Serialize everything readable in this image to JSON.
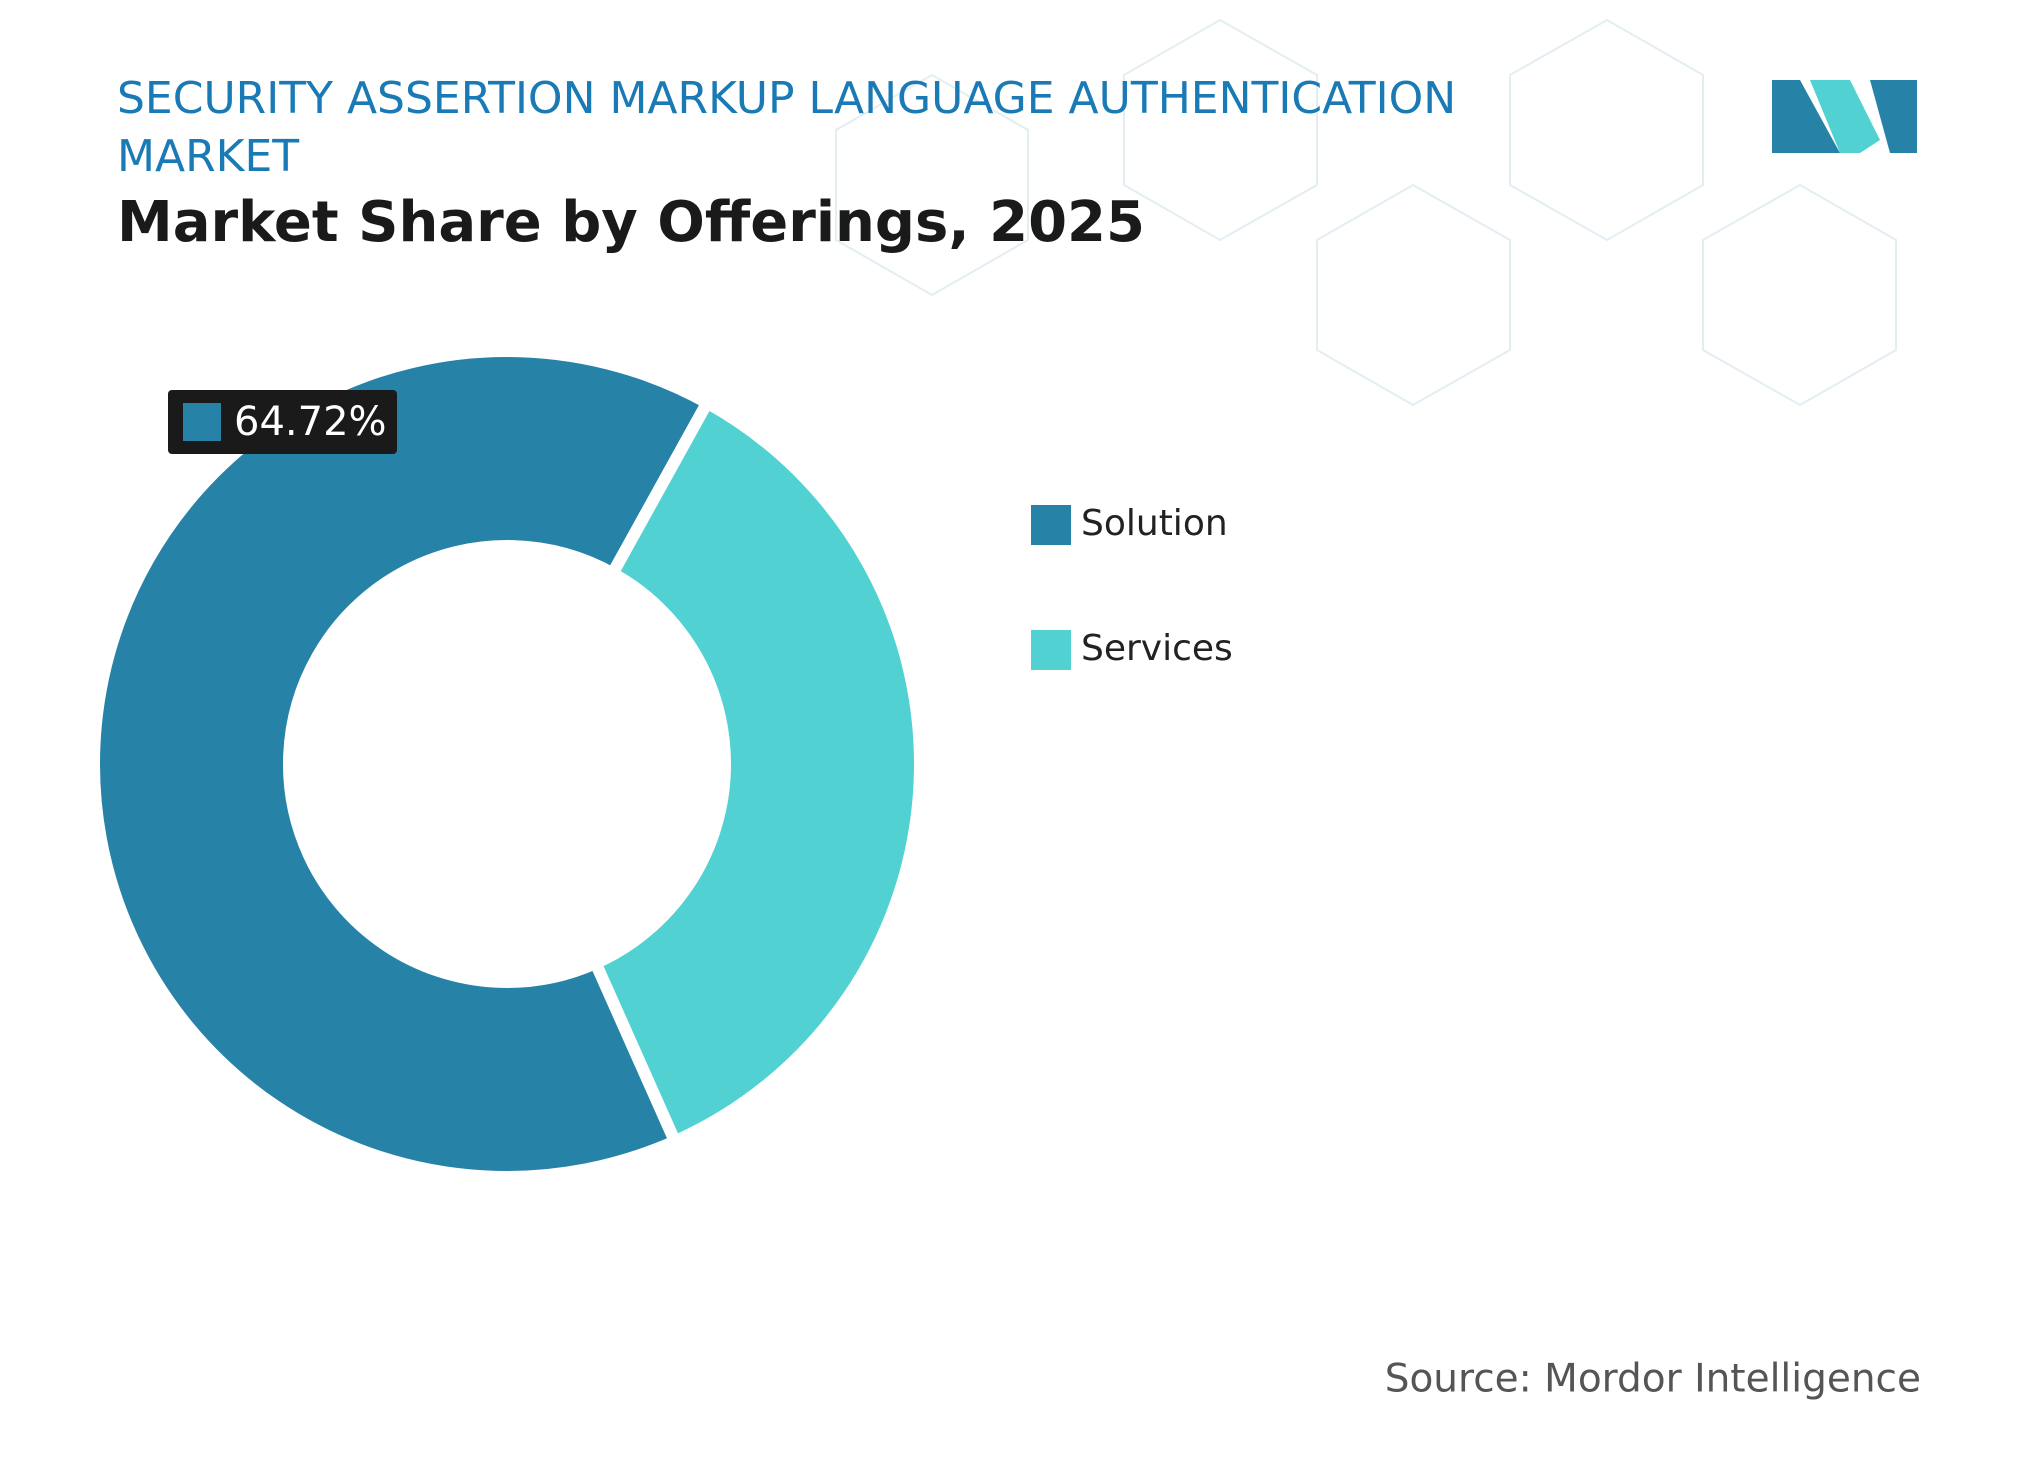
{
  "chart_data": {
    "type": "donut",
    "title": "SECURITY ASSERTION MARKUP LANGUAGE AUTHENTICATION MARKET",
    "subtitle": "Market Share by Offerings, 2025",
    "source": "Source: Mordor Intelligence",
    "categories": [
      "Solution",
      "Services"
    ],
    "values": [
      64.72,
      35.28
    ],
    "value_labels": [
      "64.72%",
      null
    ],
    "colors": [
      "#2782a8",
      "#52d1d3"
    ]
  }
}
